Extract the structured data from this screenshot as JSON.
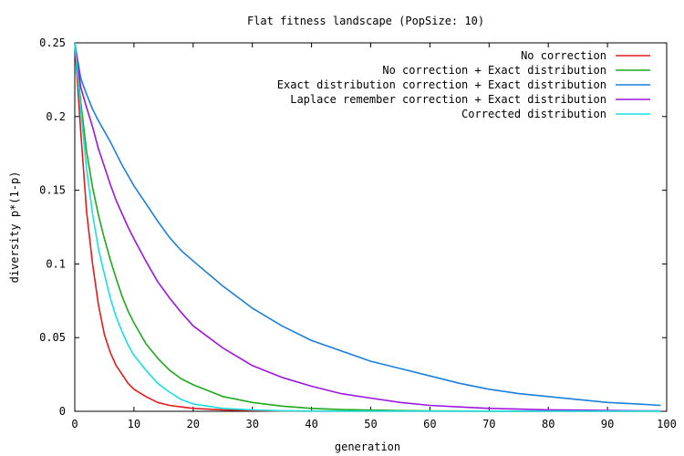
{
  "chart_data": {
    "type": "line",
    "title": "Flat fitness landscape (PopSize: 10)",
    "xlabel": "generation",
    "ylabel": "diversity p*(1-p)",
    "xlim": [
      0,
      100
    ],
    "ylim": [
      0,
      0.25
    ],
    "x_ticks": [
      "0",
      "10",
      "20",
      "30",
      "40",
      "50",
      "60",
      "70",
      "80",
      "90",
      "100"
    ],
    "y_ticks": [
      "0",
      "0.05",
      "0.1",
      "0.15",
      "0.2",
      "0.25"
    ],
    "grid": false,
    "legend_position": "top-right",
    "x": [
      0,
      1,
      2,
      3,
      4,
      5,
      6,
      7,
      8,
      9,
      10,
      12,
      14,
      16,
      18,
      20,
      25,
      30,
      35,
      40,
      45,
      50,
      55,
      60,
      65,
      70,
      75,
      80,
      85,
      90,
      95,
      99
    ],
    "series": [
      {
        "name": "No correction",
        "color": "#e41a1c",
        "values": [
          0.25,
          0.19,
          0.135,
          0.1,
          0.072,
          0.052,
          0.04,
          0.031,
          0.025,
          0.019,
          0.015,
          0.01,
          0.006,
          0.004,
          0.003,
          0.002,
          0.001,
          0.0005,
          0.0002,
          0.0001,
          0.0001,
          0.0001,
          0.0001,
          0.0001,
          0.0001,
          0.0001,
          0.0001,
          0.0001,
          0.0001,
          0.0001,
          0.0001,
          0.0001
        ]
      },
      {
        "name": "No correction + Exact distribution",
        "color": "#1ea81e",
        "values": [
          0.25,
          0.21,
          0.176,
          0.152,
          0.133,
          0.117,
          0.103,
          0.09,
          0.078,
          0.068,
          0.06,
          0.046,
          0.036,
          0.028,
          0.022,
          0.018,
          0.01,
          0.006,
          0.0035,
          0.002,
          0.0012,
          0.0008,
          0.0005,
          0.0003,
          0.0002,
          0.0001,
          0.0001,
          0.0001,
          0.0001,
          0.0001,
          0.0001,
          0.0001
        ]
      },
      {
        "name": "Exact distribution correction + Exact distribution",
        "color": "#1a7fdd",
        "values": [
          0.25,
          0.226,
          0.215,
          0.205,
          0.197,
          0.19,
          0.183,
          0.175,
          0.167,
          0.16,
          0.153,
          0.141,
          0.129,
          0.118,
          0.109,
          0.102,
          0.085,
          0.07,
          0.058,
          0.048,
          0.041,
          0.034,
          0.029,
          0.024,
          0.019,
          0.015,
          0.012,
          0.01,
          0.008,
          0.006,
          0.005,
          0.004
        ]
      },
      {
        "name": "Laplace remember correction + Exact distribution",
        "color": "#9b17dc",
        "values": [
          0.25,
          0.22,
          0.206,
          0.193,
          0.178,
          0.166,
          0.154,
          0.143,
          0.134,
          0.125,
          0.117,
          0.102,
          0.088,
          0.077,
          0.067,
          0.058,
          0.043,
          0.031,
          0.023,
          0.017,
          0.012,
          0.009,
          0.006,
          0.004,
          0.003,
          0.002,
          0.0015,
          0.001,
          0.0008,
          0.0006,
          0.0004,
          0.0003
        ]
      },
      {
        "name": "Corrected distribution",
        "color": "#19e0e0",
        "values": [
          0.25,
          0.205,
          0.164,
          0.134,
          0.11,
          0.093,
          0.077,
          0.064,
          0.054,
          0.045,
          0.038,
          0.028,
          0.019,
          0.013,
          0.008,
          0.005,
          0.002,
          0.001,
          0.0004,
          0.0002,
          0.0001,
          0.0001,
          0.0001,
          0.0001,
          0.0001,
          0.0001,
          0.0001,
          0.0001,
          0.0001,
          0.0001,
          0.0001,
          0.0001
        ]
      }
    ]
  }
}
